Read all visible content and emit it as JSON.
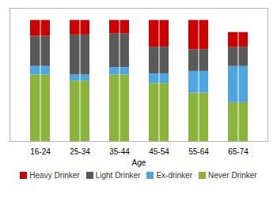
{
  "chart_data": {
    "type": "bar",
    "stacked": true,
    "xlabel": "Age",
    "categories": [
      "16-24",
      "25-34",
      "35-44",
      "45-54",
      "55-64",
      "65-74"
    ],
    "series": [
      {
        "name": "Never Drinker",
        "color": "#8cb33a",
        "values": [
          55,
          50,
          55,
          48,
          40,
          32
        ]
      },
      {
        "name": "Ex-drinker",
        "color": "#4da6e0",
        "values": [
          7,
          5,
          6,
          8,
          18,
          30
        ]
      },
      {
        "name": "Light Drinker",
        "color": "#595959",
        "values": [
          25,
          33,
          28,
          22,
          18,
          16
        ]
      },
      {
        "name": "Heavy Drinker",
        "color": "#cc0000",
        "values": [
          13,
          12,
          11,
          22,
          24,
          12
        ]
      }
    ],
    "ylim": [
      0,
      110
    ],
    "grid": true,
    "legend": "bottom",
    "tick_labels": "x"
  }
}
